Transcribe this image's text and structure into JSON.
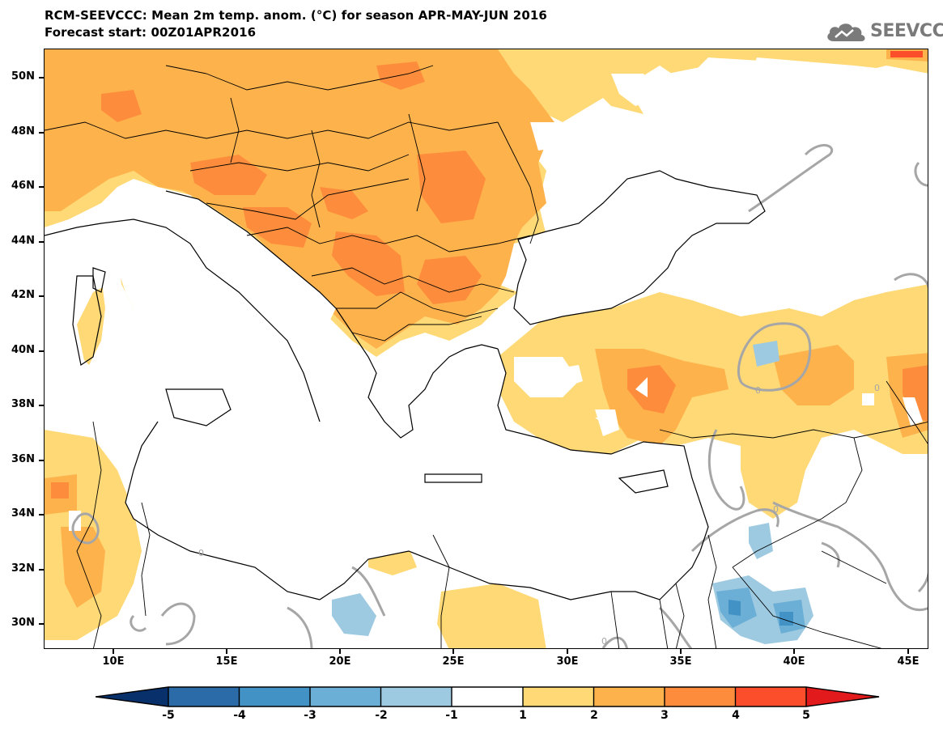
{
  "header": {
    "title_line1": "RCM-SEEVCCC: Mean 2m temp. anom. (°C) for season APR-MAY-JUN 2016",
    "title_line2": "Forecast start: 00Z01APR2016",
    "logo_text": "SEEVCCC"
  },
  "map": {
    "region": "Balkans, Eastern Mediterranean, Black Sea, Anatolia",
    "lon_range": [
      7,
      46
    ],
    "lat_range": [
      29,
      51
    ],
    "lon_ticks": [
      "10E",
      "15E",
      "20E",
      "25E",
      "30E",
      "35E",
      "40E",
      "45E"
    ],
    "lat_ticks": [
      "50N",
      "48N",
      "46N",
      "44N",
      "42N",
      "40N",
      "38N",
      "36N",
      "34N",
      "32N",
      "30N"
    ],
    "contour_label": "0",
    "colors": {
      "sea": "#ffffff",
      "zero_contour": "#a6a6a6",
      "anom_1_2": "#fed976",
      "anom_2_3": "#feb24c",
      "anom_3_4": "#fd8d3c",
      "anom_neg_1_2": "#9ecae1",
      "anom_neg_2_3": "#6baed6",
      "anom_neg_3_4": "#4292c6"
    }
  },
  "colorbar": {
    "labels": [
      "-5",
      "-4",
      "-3",
      "-2",
      "-1",
      "1",
      "2",
      "3",
      "4",
      "5"
    ],
    "colors": [
      "#08306b",
      "#2b6ca8",
      "#4292c6",
      "#6baed6",
      "#9ecae1",
      "#ffffff",
      "#fed976",
      "#feb24c",
      "#fd8d3c",
      "#fc4e2a",
      "#e31a1c"
    ]
  }
}
